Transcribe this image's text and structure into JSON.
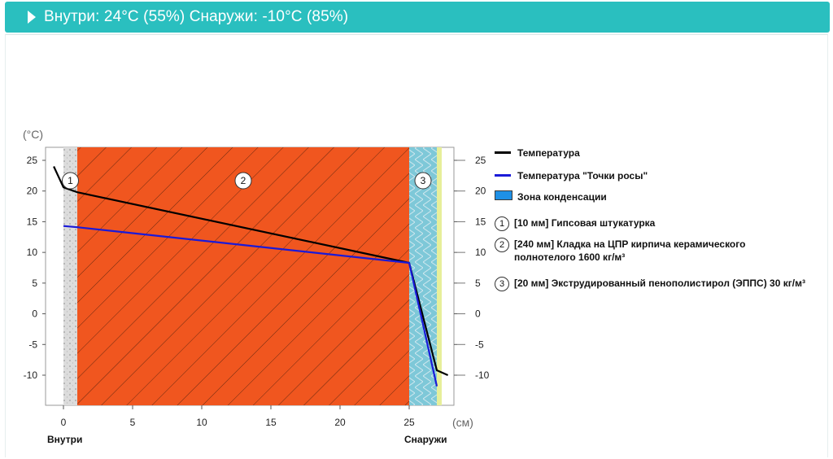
{
  "header": {
    "title": "Внутри: 24°C (55%) Снаружи: -10°C (85%)"
  },
  "colors": {
    "header_bg": "#2abfbf",
    "brick": "#f0561f",
    "plaster": "#dcdcdc",
    "insulation": "#7ec8d8",
    "condensation_zone": "#1e90e6",
    "temperature_line": "#000000",
    "dew_point_line": "#1a1ad8"
  },
  "chart_data": {
    "type": "line",
    "y_unit_label": "(°C)",
    "x_unit_label": "(см)",
    "x_ticks": [
      0,
      5,
      10,
      15,
      20,
      25
    ],
    "y_ticks": [
      25,
      20,
      15,
      10,
      5,
      0,
      -5,
      -10
    ],
    "xlim": [
      -1.5,
      28.5
    ],
    "ylim": [
      -15,
      27
    ],
    "x_side_labels": {
      "inside": "Внутри",
      "outside": "Снаружи"
    },
    "layers": [
      {
        "number": "1",
        "x_start": 0,
        "x_end": 1,
        "material": "plaster",
        "legend": "[10 мм] Гипсовая штукатурка"
      },
      {
        "number": "2",
        "x_start": 1,
        "x_end": 25,
        "material": "brick",
        "legend": "[240 мм] Кладка на ЦПР кирпича керамического полнотелого 1600 кг/м³"
      },
      {
        "number": "3",
        "x_start": 25,
        "x_end": 27,
        "material": "insulation",
        "legend": "[20 мм] Экструдированный пенополистирол (ЭППС) 30 кг/м³"
      }
    ],
    "series": [
      {
        "name": "Температура",
        "x": [
          -0.7,
          0,
          1,
          25,
          27,
          27.8
        ],
        "y": [
          24,
          20.6,
          19.8,
          8.3,
          -9.2,
          -10
        ]
      },
      {
        "name": "Температура \"Точки росы\"",
        "x": [
          0,
          1,
          25,
          27
        ],
        "y": [
          14.3,
          14.1,
          8.3,
          -11.8
        ]
      }
    ],
    "legend": {
      "temperature": "Температура",
      "dew_point": "Температура \"Точки росы\"",
      "condensation_zone": "Зона конденсации",
      "layer1": "[10 мм] Гипсовая штукатурка",
      "layer2": "[240 мм] Кладка на ЦПР кирпича керамического полнотелого 1600 кг/м³",
      "layer3": "[20 мм] Экструдированный пенополистирол (ЭППС) 30 кг/м³"
    }
  }
}
